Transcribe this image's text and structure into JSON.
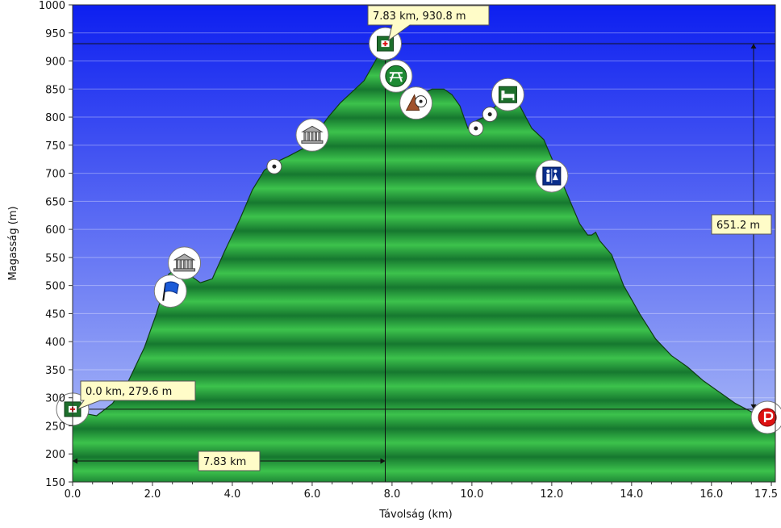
{
  "chart_data": {
    "type": "area",
    "xlabel": "Távolság (km)",
    "ylabel": "Magasság (m)",
    "xlim": [
      0,
      17.6
    ],
    "ylim": [
      150,
      1000
    ],
    "x_ticks": [
      "0.0",
      "2.0",
      "4.0",
      "6.0",
      "8.0",
      "10.0",
      "12.0",
      "14.0",
      "16.0",
      "17.5"
    ],
    "x_tick_values": [
      0,
      2,
      4,
      6,
      8,
      10,
      12,
      14,
      16,
      17.5
    ],
    "y_ticks": [
      150,
      200,
      250,
      300,
      350,
      400,
      450,
      500,
      550,
      600,
      650,
      700,
      750,
      800,
      850,
      900,
      950,
      1000
    ],
    "grid": "horizontal",
    "colors": {
      "sky_top": "#0d1ff0",
      "sky_bottom": "#b8c7f7",
      "fill_dark": "#16782f",
      "fill_light": "#3cc24c",
      "outline": "#0f3d14",
      "callout": "#fffcc8"
    },
    "profile": {
      "x": [
        0,
        0.3,
        0.6,
        1.0,
        1.4,
        1.8,
        2.1,
        2.4,
        2.7,
        3.0,
        3.2,
        3.5,
        3.8,
        4.2,
        4.5,
        4.8,
        5.1,
        5.4,
        5.8,
        6.1,
        6.4,
        6.7,
        7.0,
        7.3,
        7.5,
        7.7,
        7.83,
        8.0,
        8.2,
        8.4,
        8.6,
        8.8,
        9.0,
        9.3,
        9.5,
        9.7,
        9.9,
        10.1,
        10.3,
        10.6,
        10.9,
        11.2,
        11.5,
        11.8,
        12.1,
        12.4,
        12.7,
        12.9,
        13.0,
        13.1,
        13.2,
        13.5,
        13.8,
        14.2,
        14.6,
        15.0,
        15.4,
        15.8,
        16.2,
        16.6,
        17.0,
        17.3,
        17.6
      ],
      "y": [
        279.6,
        272,
        268,
        290,
        330,
        390,
        450,
        520,
        535,
        515,
        505,
        512,
        560,
        620,
        670,
        705,
        720,
        730,
        745,
        770,
        800,
        825,
        845,
        865,
        890,
        915,
        930.8,
        890,
        860,
        840,
        835,
        843,
        850,
        850,
        840,
        820,
        780,
        793,
        800,
        820,
        830,
        820,
        780,
        760,
        710,
        660,
        610,
        590,
        590,
        595,
        580,
        555,
        500,
        450,
        405,
        375,
        355,
        330,
        310,
        290,
        275,
        268,
        260
      ]
    },
    "markers": [
      {
        "name": "first-aid-icon",
        "x": 0.0,
        "y": 279.6
      },
      {
        "name": "flag-icon",
        "x": 2.45,
        "y": 490
      },
      {
        "name": "museum-icon",
        "x": 2.8,
        "y": 540
      },
      {
        "name": "point-icon",
        "x": 5.05,
        "y": 712
      },
      {
        "name": "museum-icon",
        "x": 6.0,
        "y": 768
      },
      {
        "name": "first-aid-icon",
        "x": 7.83,
        "y": 930.8
      },
      {
        "name": "picnic-icon",
        "x": 8.1,
        "y": 873
      },
      {
        "name": "mine-icon",
        "x": 8.6,
        "y": 825
      },
      {
        "name": "point-icon",
        "x": 10.1,
        "y": 780
      },
      {
        "name": "point-icon",
        "x": 10.45,
        "y": 805
      },
      {
        "name": "hotel-icon",
        "x": 10.9,
        "y": 840
      },
      {
        "name": "toilet-icon",
        "x": 12.0,
        "y": 695
      },
      {
        "name": "parking-icon",
        "x": 17.4,
        "y": 265
      }
    ],
    "annotations": {
      "peak": {
        "x": 7.83,
        "y": 930.8,
        "label": "7.83 km, 930.8 m"
      },
      "start": {
        "x": 0.0,
        "y": 279.6,
        "label": "0.0 km, 279.6 m"
      },
      "distance": {
        "from": 0,
        "to": 7.83,
        "label": "7.83 km"
      },
      "elevation_gain": {
        "from": 279.6,
        "to": 930.8,
        "label": "651.2 m"
      }
    }
  }
}
